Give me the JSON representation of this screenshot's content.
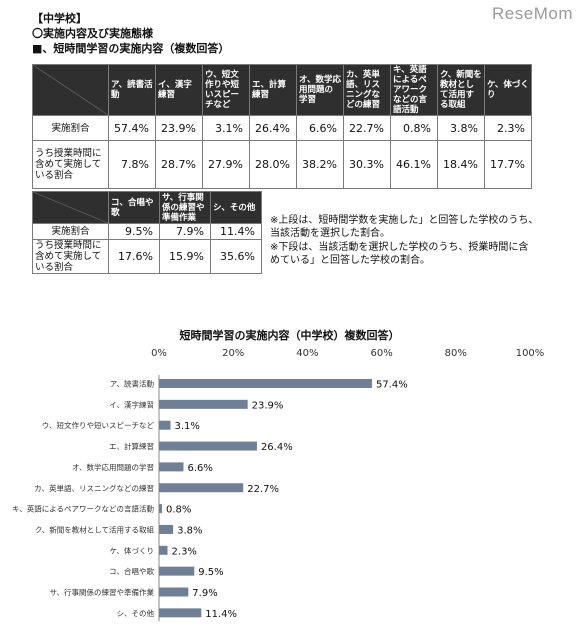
{
  "header": {
    "line1": "【中学校】",
    "line2": "〇実施内容及び実施態様",
    "line3": "■、短時間学習の実施内容（複数回答）"
  },
  "logo": {
    "text": "ReseMom"
  },
  "table1": {
    "columns": [
      "ア、読書活動",
      "イ、漢字練習",
      "ウ、短文作りや短いスピーチなど",
      "エ、計算練習",
      "オ、数学応用問題の学習",
      "カ、英単語、リスニングなどの練習",
      "キ、英語によるペアワークなどの言語活動",
      "ク、新聞を教材として活用する取組",
      "ケ、体づくり"
    ],
    "rows": [
      {
        "label": "実施割合",
        "values": [
          "57.4%",
          "23.9%",
          "3.1%",
          "26.4%",
          "6.6%",
          "22.7%",
          "0.8%",
          "3.8%",
          "2.3%"
        ]
      },
      {
        "label": "うち授業時間に含めて実施している割合",
        "values": [
          "7.8%",
          "28.7%",
          "27.9%",
          "28.0%",
          "38.2%",
          "30.3%",
          "46.1%",
          "18.4%",
          "17.7%"
        ]
      }
    ]
  },
  "table2": {
    "columns": [
      "コ、合唱や歌",
      "サ、行事関係の練習や準備作業",
      "シ、その他"
    ],
    "rows": [
      {
        "label": "実施割合",
        "values": [
          "9.5%",
          "7.9%",
          "11.4%"
        ]
      },
      {
        "label": "うち授業時間に含めて実施している割合",
        "values": [
          "17.6%",
          "15.9%",
          "35.6%"
        ]
      }
    ]
  },
  "notes": {
    "line1": "※上段は、短時間学数を実施した」と回答した学校のうち、",
    "line2": "当該活動を選択した割合。",
    "line3": "※下段は、当該活動を選択した学校のうち、授業時間に含",
    "line4": "めている」と回答した学校の割合。"
  },
  "chart_data": {
    "type": "bar",
    "orientation": "horizontal",
    "title": "短時間学習の実施内容（中学校）複数回答）",
    "categories": [
      "ア、読書活動",
      "イ、漢字練習",
      "ウ、短文作りや短いスピーチなど",
      "エ、計算練習",
      "オ、数学応用問題の学習",
      "カ、英単語、リスニングなどの練習",
      "キ、英語によるペアワークなどの言語活動",
      "ク、新聞を教材として活用する取組",
      "ケ、体づくり",
      "コ、合唱や歌",
      "サ、行事関係の練習や準備作業",
      "シ、その他"
    ],
    "values": [
      57.4,
      23.9,
      3.1,
      26.4,
      6.6,
      22.7,
      0.8,
      3.8,
      2.3,
      9.5,
      7.9,
      11.4
    ],
    "value_labels": [
      "57.4%",
      "23.9%",
      "3.1%",
      "26.4%",
      "6.6%",
      "22.7%",
      "0.8%",
      "3.8%",
      "2.3%",
      "9.5%",
      "7.9%",
      "11.4%"
    ],
    "xticks": [
      0,
      20,
      40,
      60,
      80,
      100
    ],
    "xtick_labels": [
      "0%",
      "20%",
      "40%",
      "60%",
      "80%",
      "100%"
    ],
    "xlim": [
      0,
      100
    ],
    "xaxis_position": "top",
    "grid": false,
    "bar_color": "#6f8096"
  }
}
